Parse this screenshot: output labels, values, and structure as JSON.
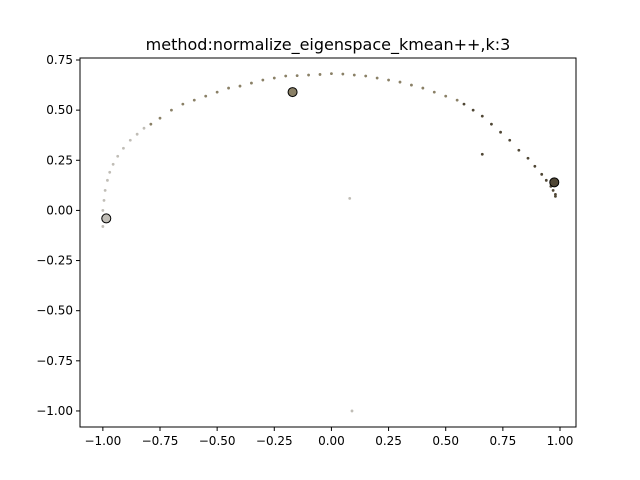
{
  "chart_data": {
    "type": "scatter",
    "title": "method:normalize_eigenspace_kmean++,k:3",
    "xlabel": "",
    "ylabel": "",
    "xlim": [
      -1.1,
      1.07
    ],
    "ylim": [
      -1.08,
      0.76
    ],
    "grid": false,
    "xticks": [
      -1.0,
      -0.75,
      -0.5,
      -0.25,
      0.0,
      0.25,
      0.5,
      0.75,
      1.0
    ],
    "xtick_labels": [
      "−1.00",
      "−0.75",
      "−0.50",
      "−0.25",
      "0.00",
      "0.25",
      "0.50",
      "0.75",
      "1.00"
    ],
    "yticks": [
      0.75,
      0.5,
      0.25,
      0.0,
      -0.25,
      -0.5,
      -0.75,
      -1.0
    ],
    "ytick_labels": [
      "0.75",
      "0.50",
      "0.25",
      "0.00",
      "−0.25",
      "−0.50",
      "−0.75",
      "−1.00"
    ],
    "series": [
      {
        "color": "#c0bdb6",
        "points": [
          [
            -1.0,
            -0.08
          ],
          [
            -1.0,
            -0.04
          ],
          [
            -1.0,
            0.0
          ],
          [
            -0.995,
            0.05
          ],
          [
            -0.99,
            0.1
          ],
          [
            -0.98,
            0.15
          ],
          [
            -0.97,
            0.19
          ],
          [
            -0.955,
            0.23
          ],
          [
            -0.935,
            0.27
          ],
          [
            -0.91,
            0.31
          ],
          [
            -0.88,
            0.35
          ],
          [
            -0.85,
            0.38
          ],
          [
            -0.82,
            0.41
          ],
          [
            0.08,
            0.06
          ],
          [
            0.09,
            -1.0
          ]
        ]
      },
      {
        "color": "#8a8066",
        "points": [
          [
            -0.79,
            0.43
          ],
          [
            -0.75,
            0.46
          ],
          [
            -0.7,
            0.5
          ],
          [
            -0.65,
            0.53
          ],
          [
            -0.6,
            0.55
          ],
          [
            -0.55,
            0.57
          ],
          [
            -0.5,
            0.59
          ],
          [
            -0.45,
            0.61
          ],
          [
            -0.4,
            0.62
          ],
          [
            -0.35,
            0.635
          ],
          [
            -0.3,
            0.65
          ],
          [
            -0.25,
            0.66
          ],
          [
            -0.2,
            0.67
          ],
          [
            -0.15,
            0.672
          ],
          [
            -0.1,
            0.675
          ],
          [
            -0.05,
            0.678
          ],
          [
            0.0,
            0.682
          ],
          [
            0.05,
            0.68
          ],
          [
            0.1,
            0.675
          ],
          [
            0.15,
            0.67
          ],
          [
            0.2,
            0.66
          ],
          [
            0.25,
            0.65
          ],
          [
            0.3,
            0.64
          ],
          [
            0.35,
            0.625
          ],
          [
            0.4,
            0.61
          ],
          [
            0.45,
            0.59
          ],
          [
            0.5,
            0.57
          ],
          [
            0.55,
            0.55
          ]
        ]
      },
      {
        "color": "#4f4634",
        "points": [
          [
            0.58,
            0.53
          ],
          [
            0.62,
            0.5
          ],
          [
            0.66,
            0.47
          ],
          [
            0.7,
            0.43
          ],
          [
            0.74,
            0.39
          ],
          [
            0.78,
            0.35
          ],
          [
            0.82,
            0.3
          ],
          [
            0.86,
            0.26
          ],
          [
            0.89,
            0.22
          ],
          [
            0.92,
            0.18
          ],
          [
            0.94,
            0.15
          ],
          [
            0.96,
            0.12
          ],
          [
            0.97,
            0.1
          ],
          [
            0.98,
            0.08
          ],
          [
            0.98,
            0.07
          ],
          [
            0.66,
            0.28
          ]
        ]
      }
    ],
    "centroids": [
      {
        "x": -0.985,
        "y": -0.04,
        "color": "#c0bdb6"
      },
      {
        "x": -0.17,
        "y": 0.59,
        "color": "#8a8066"
      },
      {
        "x": 0.975,
        "y": 0.14,
        "color": "#4f4634"
      }
    ]
  }
}
